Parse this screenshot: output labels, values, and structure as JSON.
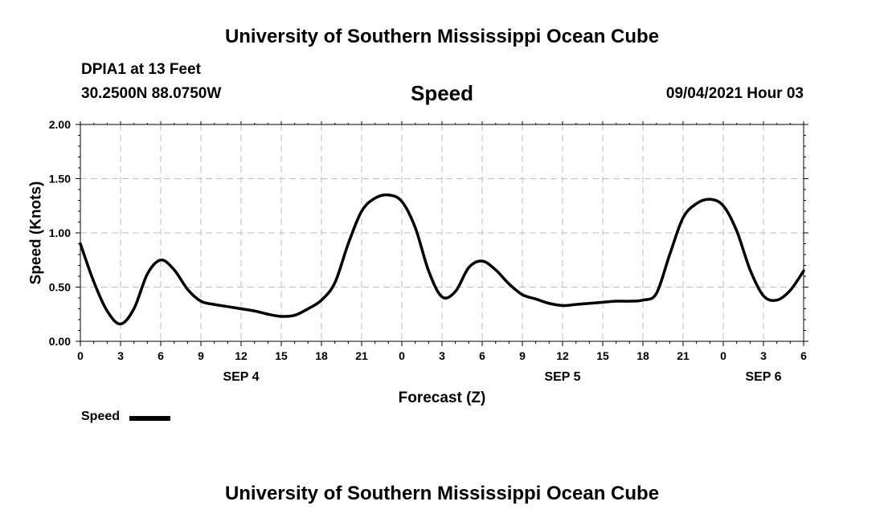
{
  "header": {
    "title": "University of Southern Mississippi Ocean Cube",
    "station": "DPIA1 at 13 Feet",
    "coordinates": "30.2500N  88.0750W",
    "parameter": "Speed",
    "datetime": "09/04/2021 Hour 03"
  },
  "footer": {
    "title": "University of Southern Mississippi Ocean Cube"
  },
  "legend": {
    "label": "Speed",
    "color": "#000000"
  },
  "chart_data": {
    "type": "line",
    "xlabel": "Forecast (Z)",
    "ylabel": "Speed (Knots)",
    "xlim": [
      0,
      54
    ],
    "ylim": [
      0,
      2.0
    ],
    "grid": true,
    "x_ticks": [
      0,
      3,
      6,
      9,
      12,
      15,
      18,
      21,
      24,
      27,
      30,
      33,
      36,
      39,
      42,
      45,
      48,
      51,
      54
    ],
    "x_tick_labels": [
      "0",
      "3",
      "6",
      "9",
      "12",
      "15",
      "18",
      "21",
      "0",
      "3",
      "6",
      "9",
      "12",
      "15",
      "18",
      "21",
      "0",
      "3",
      "6"
    ],
    "y_ticks": [
      0,
      0.5,
      1.0,
      1.5,
      2.0
    ],
    "y_tick_labels": [
      "0.00",
      "0.50",
      "1.00",
      "1.50",
      "2.00"
    ],
    "date_labels": [
      {
        "x": 12,
        "label": "SEP 4"
      },
      {
        "x": 36,
        "label": "SEP 5"
      },
      {
        "x": 51,
        "label": "SEP 6"
      }
    ],
    "series": [
      {
        "name": "Speed",
        "color": "#000000",
        "x": [
          0,
          1,
          2,
          3,
          4,
          5,
          6,
          7,
          8,
          9,
          10,
          11,
          12,
          13,
          14,
          15,
          16,
          17,
          18,
          19,
          20,
          21,
          22,
          23,
          24,
          25,
          26,
          27,
          28,
          29,
          30,
          31,
          32,
          33,
          34,
          35,
          36,
          37,
          38,
          39,
          40,
          41,
          42,
          43,
          44,
          45,
          46,
          47,
          48,
          49,
          50,
          51,
          52,
          53,
          54
        ],
        "y": [
          0.9,
          0.55,
          0.28,
          0.16,
          0.3,
          0.62,
          0.75,
          0.66,
          0.48,
          0.37,
          0.34,
          0.32,
          0.3,
          0.28,
          0.25,
          0.23,
          0.24,
          0.3,
          0.38,
          0.54,
          0.9,
          1.2,
          1.32,
          1.35,
          1.29,
          1.05,
          0.65,
          0.41,
          0.46,
          0.68,
          0.74,
          0.66,
          0.53,
          0.43,
          0.39,
          0.35,
          0.33,
          0.34,
          0.35,
          0.36,
          0.37,
          0.37,
          0.38,
          0.44,
          0.8,
          1.14,
          1.27,
          1.31,
          1.25,
          1.02,
          0.66,
          0.42,
          0.38,
          0.47,
          0.65
        ]
      }
    ]
  }
}
